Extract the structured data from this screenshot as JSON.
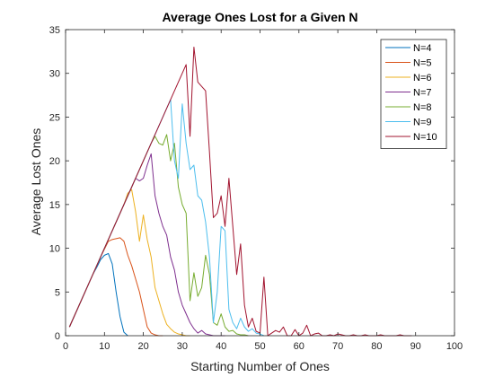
{
  "chart_data": {
    "type": "line",
    "title": "Average Ones Lost for a Given N",
    "xlabel": "Starting Number of Ones",
    "ylabel": "Average Lost Ones",
    "xlim": [
      0,
      100
    ],
    "ylim": [
      0,
      35
    ],
    "xticks": [
      "0",
      "10",
      "20",
      "30",
      "40",
      "50",
      "60",
      "70",
      "80",
      "90",
      "100"
    ],
    "yticks": [
      "0",
      "5",
      "10",
      "15",
      "20",
      "25",
      "30",
      "35"
    ],
    "grid": false,
    "legend_position": "top-right",
    "series": [
      {
        "name": "N=4",
        "color": "#0072BD",
        "x": [
          1,
          2,
          3,
          4,
          5,
          6,
          7,
          8,
          9,
          10,
          11,
          12,
          13,
          14,
          15,
          16
        ],
        "y": [
          1.0,
          2.0,
          3.0,
          4.0,
          5.0,
          6.0,
          7.0,
          7.8,
          8.7,
          9.2,
          9.4,
          8.2,
          5.0,
          2.2,
          0.4,
          0.0
        ]
      },
      {
        "name": "N=5",
        "color": "#D95319",
        "x": [
          1,
          3,
          5,
          7,
          9,
          11,
          12,
          13,
          14,
          15,
          16,
          17,
          18,
          19,
          20,
          21,
          22,
          23,
          24,
          25
        ],
        "y": [
          1.0,
          3.0,
          5.0,
          7.0,
          9.0,
          10.8,
          11.0,
          11.1,
          11.2,
          10.8,
          9.2,
          8.0,
          6.5,
          5.0,
          3.0,
          1.0,
          0.3,
          0.1,
          0.0,
          0.0
        ]
      },
      {
        "name": "N=6",
        "color": "#EDB120",
        "x": [
          1,
          5,
          10,
          15,
          16,
          17,
          18,
          19,
          20,
          21,
          22,
          23,
          24,
          25,
          26,
          27,
          28,
          29,
          30,
          31,
          32
        ],
        "y": [
          1.0,
          5.0,
          10.0,
          15.0,
          16.3,
          16.7,
          14.2,
          10.8,
          13.8,
          11.0,
          9.0,
          5.5,
          4.0,
          2.5,
          1.3,
          0.8,
          0.4,
          0.2,
          0.1,
          0.0,
          0.0
        ]
      },
      {
        "name": "N=7",
        "color": "#7E2F8E",
        "x": [
          1,
          5,
          10,
          15,
          18,
          19,
          20,
          21,
          22,
          23,
          24,
          25,
          26,
          27,
          28,
          29,
          30,
          31,
          32,
          33,
          34,
          35,
          36,
          37,
          38,
          39,
          40,
          41
        ],
        "y": [
          1.0,
          5.0,
          10.0,
          15.0,
          18.0,
          17.7,
          18.0,
          19.5,
          20.8,
          16.0,
          14.0,
          12.5,
          11.5,
          9.0,
          7.5,
          5.0,
          3.5,
          2.5,
          1.5,
          0.8,
          0.3,
          0.6,
          0.2,
          0.1,
          0.0,
          0.0,
          0.0,
          0.0
        ]
      },
      {
        "name": "N=8",
        "color": "#77AC30",
        "x": [
          1,
          5,
          10,
          15,
          20,
          22,
          23,
          24,
          25,
          26,
          27,
          28,
          29,
          30,
          31,
          32,
          33,
          34,
          35,
          36,
          37,
          38,
          39,
          40,
          41,
          42,
          43,
          44,
          45,
          46,
          47
        ],
        "y": [
          1.0,
          5.0,
          10.0,
          15.0,
          20.0,
          22.0,
          22.8,
          22.0,
          21.8,
          23.0,
          20.0,
          22.0,
          17.0,
          15.0,
          14.0,
          4.0,
          7.2,
          4.5,
          5.5,
          9.2,
          7.0,
          1.5,
          1.2,
          2.5,
          1.0,
          0.5,
          0.6,
          0.2,
          0.1,
          0.1,
          0.0
        ]
      },
      {
        "name": "N=9",
        "color": "#4DBEEE",
        "x": [
          1,
          5,
          10,
          15,
          20,
          25,
          27,
          28,
          29,
          30,
          31,
          32,
          33,
          34,
          35,
          36,
          37,
          38,
          39,
          40,
          41,
          42,
          43,
          44,
          45,
          46,
          47,
          48,
          49,
          50,
          51
        ],
        "y": [
          1.0,
          5.0,
          10.0,
          15.0,
          20.0,
          25.0,
          27.0,
          20.0,
          18.0,
          26.5,
          22.0,
          19.0,
          19.5,
          16.0,
          15.5,
          13.0,
          9.0,
          1.5,
          5.0,
          12.5,
          12.0,
          3.0,
          1.5,
          0.8,
          2.0,
          1.0,
          0.5,
          0.8,
          0.3,
          0.2,
          0.0
        ]
      },
      {
        "name": "N=10",
        "color": "#A2142F",
        "x": [
          1,
          5,
          10,
          15,
          20,
          25,
          30,
          31,
          32,
          33,
          34,
          35,
          36,
          37,
          38,
          39,
          40,
          41,
          42,
          43,
          44,
          45,
          46,
          47,
          48,
          49,
          50,
          51,
          52,
          53,
          54,
          55,
          56,
          57,
          58,
          59,
          60,
          61,
          62,
          63,
          64,
          65,
          66,
          67,
          68,
          69,
          70,
          71,
          72,
          73,
          74,
          75,
          76,
          77,
          78,
          79,
          80,
          81,
          82,
          83,
          84,
          85,
          86,
          87,
          88,
          89
        ],
        "y": [
          1.0,
          5.0,
          10.0,
          15.0,
          20.0,
          25.0,
          30.0,
          31.0,
          22.8,
          33.0,
          29.0,
          28.5,
          28.0,
          21.0,
          13.5,
          14.0,
          16.0,
          12.5,
          18.0,
          12.5,
          7.0,
          10.5,
          3.5,
          1.0,
          2.0,
          0.5,
          0.3,
          6.7,
          0.0,
          0.3,
          0.6,
          0.4,
          1.0,
          0.0,
          0.0,
          0.7,
          0.0,
          0.3,
          1.2,
          0.0,
          0.2,
          0.3,
          0.0,
          0.0,
          0.1,
          0.0,
          0.2,
          0.1,
          0.0,
          0.0,
          0.1,
          0.0,
          0.0,
          0.1,
          0.0,
          0.0,
          0.0,
          0.1,
          0.0,
          0.0,
          0.0,
          0.0,
          0.1,
          0.0,
          0.0,
          0.0
        ]
      }
    ]
  }
}
